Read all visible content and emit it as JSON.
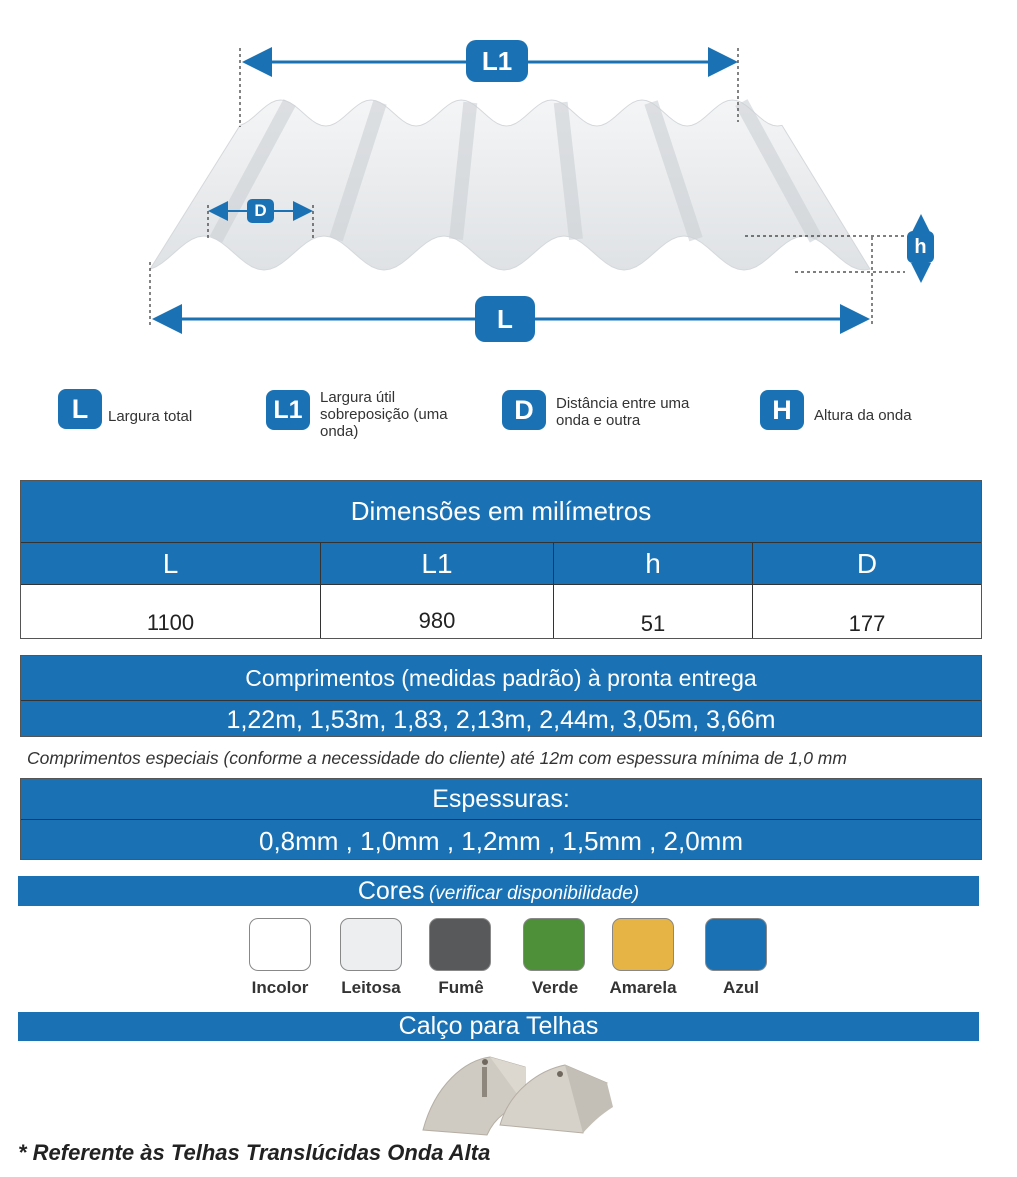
{
  "diagram": {
    "l1_label": "L1",
    "d_label": "D",
    "l_label": "L",
    "h_label": "h"
  },
  "legend": [
    {
      "badge": "L",
      "text": "Largura total"
    },
    {
      "badge": "L1",
      "text": "Largura útil sobreposição (uma onda)"
    },
    {
      "badge": "D",
      "text": "Distância entre uma onda e outra"
    },
    {
      "badge": "H",
      "text": "Altura da onda"
    }
  ],
  "dimensions": {
    "title": "Dimensões em milímetros",
    "headers": [
      "L",
      "L1",
      "h",
      "D"
    ],
    "values": [
      "1100",
      "980",
      "51",
      "177"
    ]
  },
  "lengths": {
    "title": "Comprimentos (medidas padrão) à pronta entrega",
    "values": "1,22m, 1,53m, 1,83, 2,13m, 2,44m, 3,05m, 3,66m",
    "note": "Comprimentos especiais (conforme a necessidade do cliente) até 12m com espessura mínima de 1,0 mm"
  },
  "thickness": {
    "title": "Espessuras:",
    "values": "0,8mm , 1,0mm , 1,2mm , 1,5mm ,  2,0mm"
  },
  "colors": {
    "title": "Cores",
    "subtitle": "(verificar disponibilidade)",
    "items": [
      {
        "name": "Incolor",
        "hex": "#ffffff"
      },
      {
        "name": "Leitosa",
        "hex": "#eceef0"
      },
      {
        "name": "Fumê",
        "hex": "#58595b"
      },
      {
        "name": "Verde",
        "hex": "#4e8f3a"
      },
      {
        "name": "Amarela",
        "hex": "#e5b445"
      },
      {
        "name": "Azul",
        "hex": "#1a72b5"
      }
    ]
  },
  "shim": {
    "title": "Calço para Telhas"
  },
  "footnote": "* Referente às Telhas Translúcidas Onda Alta",
  "accent": "#1a72b5"
}
